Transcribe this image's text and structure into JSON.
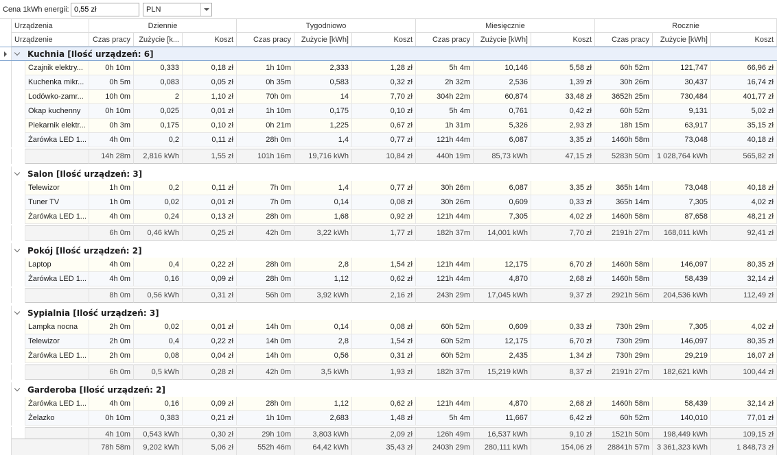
{
  "toolbar": {
    "price_label": "Cena 1kWh energii:",
    "price_value": "0,55 zł",
    "currency": "PLN"
  },
  "bands": {
    "devices": "Urządzenia",
    "daily": "Dziennie",
    "weekly": "Tygodniowo",
    "monthly": "Miesięcznie",
    "yearly": "Rocznie"
  },
  "columns": {
    "device": "Urządzenie",
    "time": "Czas pracy",
    "usage_short": "Zużycie [k...",
    "usage": "Zużycie [kWh]",
    "cost": "Koszt"
  },
  "groups": [
    {
      "title": "Kuchnia [Ilość urządzeń: 6]",
      "rows": [
        [
          "Czajnik elektry...",
          "0h 10m",
          "0,333",
          "0,18 zł",
          "1h 10m",
          "2,333",
          "1,28 zł",
          "5h 4m",
          "10,146",
          "5,58 zł",
          "60h 52m",
          "121,747",
          "66,96 zł"
        ],
        [
          "Kuchenka mikr...",
          "0h 5m",
          "0,083",
          "0,05 zł",
          "0h 35m",
          "0,583",
          "0,32 zł",
          "2h 32m",
          "2,536",
          "1,39 zł",
          "30h 26m",
          "30,437",
          "16,74 zł"
        ],
        [
          "Lodówko-zamr...",
          "10h 0m",
          "2",
          "1,10 zł",
          "70h 0m",
          "14",
          "7,70 zł",
          "304h 22m",
          "60,874",
          "33,48 zł",
          "3652h 25m",
          "730,484",
          "401,77 zł"
        ],
        [
          "Okap kuchenny",
          "0h 10m",
          "0,025",
          "0,01 zł",
          "1h 10m",
          "0,175",
          "0,10 zł",
          "5h 4m",
          "0,761",
          "0,42 zł",
          "60h 52m",
          "9,131",
          "5,02 zł"
        ],
        [
          "Piekarnik elektr...",
          "0h 3m",
          "0,175",
          "0,10 zł",
          "0h 21m",
          "1,225",
          "0,67 zł",
          "1h 31m",
          "5,326",
          "2,93 zł",
          "18h 15m",
          "63,917",
          "35,15 zł"
        ],
        [
          "Żarówka LED 1...",
          "4h 0m",
          "0,2",
          "0,11 zł",
          "28h 0m",
          "1,4",
          "0,77 zł",
          "121h 44m",
          "6,087",
          "3,35 zł",
          "1460h 58m",
          "73,048",
          "40,18 zł"
        ]
      ],
      "summary": [
        "14h 28m",
        "2,816 kWh",
        "1,55 zł",
        "101h 16m",
        "19,716 kWh",
        "10,84 zł",
        "440h 19m",
        "85,73 kWh",
        "47,15 zł",
        "5283h 50m",
        "1 028,764 kWh",
        "565,82 zł"
      ]
    },
    {
      "title": "Salon [Ilość urządzeń: 3]",
      "rows": [
        [
          "Telewizor",
          "1h 0m",
          "0,2",
          "0,11 zł",
          "7h 0m",
          "1,4",
          "0,77 zł",
          "30h 26m",
          "6,087",
          "3,35 zł",
          "365h 14m",
          "73,048",
          "40,18 zł"
        ],
        [
          "Tuner TV",
          "1h 0m",
          "0,02",
          "0,01 zł",
          "7h 0m",
          "0,14",
          "0,08 zł",
          "30h 26m",
          "0,609",
          "0,33 zł",
          "365h 14m",
          "7,305",
          "4,02 zł"
        ],
        [
          "Żarówka LED 1...",
          "4h 0m",
          "0,24",
          "0,13 zł",
          "28h 0m",
          "1,68",
          "0,92 zł",
          "121h 44m",
          "7,305",
          "4,02 zł",
          "1460h 58m",
          "87,658",
          "48,21 zł"
        ]
      ],
      "summary": [
        "6h 0m",
        "0,46 kWh",
        "0,25 zł",
        "42h 0m",
        "3,22 kWh",
        "1,77 zł",
        "182h 37m",
        "14,001 kWh",
        "7,70 zł",
        "2191h 27m",
        "168,011 kWh",
        "92,41 zł"
      ]
    },
    {
      "title": "Pokój [Ilość urządzeń: 2]",
      "rows": [
        [
          "Laptop",
          "4h 0m",
          "0,4",
          "0,22 zł",
          "28h 0m",
          "2,8",
          "1,54 zł",
          "121h 44m",
          "12,175",
          "6,70 zł",
          "1460h 58m",
          "146,097",
          "80,35 zł"
        ],
        [
          "Żarówka LED 1...",
          "4h 0m",
          "0,16",
          "0,09 zł",
          "28h 0m",
          "1,12",
          "0,62 zł",
          "121h 44m",
          "4,870",
          "2,68 zł",
          "1460h 58m",
          "58,439",
          "32,14 zł"
        ]
      ],
      "summary": [
        "8h 0m",
        "0,56 kWh",
        "0,31 zł",
        "56h 0m",
        "3,92 kWh",
        "2,16 zł",
        "243h 29m",
        "17,045 kWh",
        "9,37 zł",
        "2921h 56m",
        "204,536 kWh",
        "112,49 zł"
      ]
    },
    {
      "title": "Sypialnia [Ilość urządzeń: 3]",
      "rows": [
        [
          "Lampka nocna",
          "2h 0m",
          "0,02",
          "0,01 zł",
          "14h 0m",
          "0,14",
          "0,08 zł",
          "60h 52m",
          "0,609",
          "0,33 zł",
          "730h 29m",
          "7,305",
          "4,02 zł"
        ],
        [
          "Telewizor",
          "2h 0m",
          "0,4",
          "0,22 zł",
          "14h 0m",
          "2,8",
          "1,54 zł",
          "60h 52m",
          "12,175",
          "6,70 zł",
          "730h 29m",
          "146,097",
          "80,35 zł"
        ],
        [
          "Żarówka LED 1...",
          "2h 0m",
          "0,08",
          "0,04 zł",
          "14h 0m",
          "0,56",
          "0,31 zł",
          "60h 52m",
          "2,435",
          "1,34 zł",
          "730h 29m",
          "29,219",
          "16,07 zł"
        ]
      ],
      "summary": [
        "6h 0m",
        "0,5 kWh",
        "0,28 zł",
        "42h 0m",
        "3,5 kWh",
        "1,93 zł",
        "182h 37m",
        "15,219 kWh",
        "8,37 zł",
        "2191h 27m",
        "182,621 kWh",
        "100,44 zł"
      ]
    },
    {
      "title": "Garderoba [Ilość urządzeń: 2]",
      "rows": [
        [
          "Żarówka LED 1...",
          "4h 0m",
          "0,16",
          "0,09 zł",
          "28h 0m",
          "1,12",
          "0,62 zł",
          "121h 44m",
          "4,870",
          "2,68 zł",
          "1460h 58m",
          "58,439",
          "32,14 zł"
        ],
        [
          "Żelazko",
          "0h 10m",
          "0,383",
          "0,21 zł",
          "1h 10m",
          "2,683",
          "1,48 zł",
          "5h 4m",
          "11,667",
          "6,42 zł",
          "60h 52m",
          "140,010",
          "77,01 zł"
        ]
      ],
      "summary": [
        "4h 10m",
        "0,543 kWh",
        "0,30 zł",
        "29h 10m",
        "3,803 kWh",
        "2,09 zł",
        "126h 49m",
        "16,537 kWh",
        "9,10 zł",
        "1521h 50m",
        "198,449 kWh",
        "109,15 zł"
      ]
    }
  ],
  "total": [
    "78h 58m",
    "9,202 kWh",
    "5,06 zł",
    "552h 46m",
    "64,42 kWh",
    "35,43 zł",
    "2403h 29m",
    "280,111 kWh",
    "154,06 zł",
    "28841h 57m",
    "3 361,323 kWh",
    "1 848,73 zł"
  ]
}
